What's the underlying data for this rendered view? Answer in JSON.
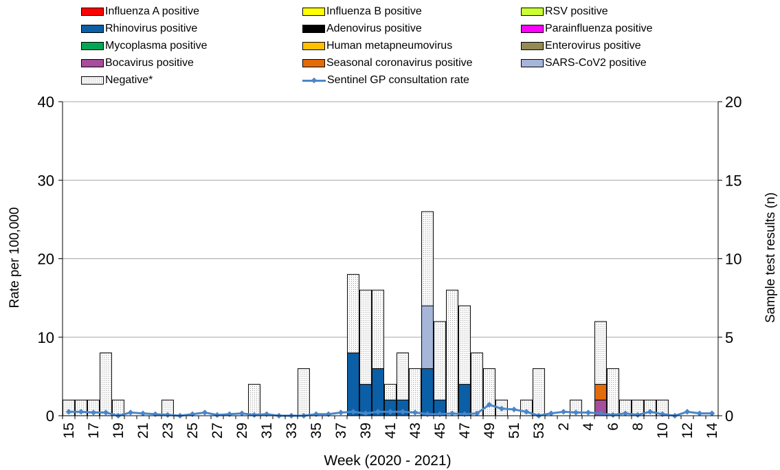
{
  "legend": [
    {
      "name": "Influenza A positive",
      "color": "#ff0000"
    },
    {
      "name": "Influenza B positive",
      "color": "#ffff00"
    },
    {
      "name": "RSV positive",
      "color": "#ccff33"
    },
    {
      "name": "Rhinovirus positive",
      "color": "#0b5fa6"
    },
    {
      "name": "Adenovirus positive",
      "color": "#000000"
    },
    {
      "name": "Parainfluenza positive",
      "color": "#ff00ff"
    },
    {
      "name": "Mycoplasma positive",
      "color": "#00a651"
    },
    {
      "name": "Human metapneumovirus",
      "color": "#ffc000"
    },
    {
      "name": "Enterovirus positive",
      "color": "#948a54"
    },
    {
      "name": "Bocavirus positive",
      "color": "#a64d9c"
    },
    {
      "name": "Seasonal coronavirus positive",
      "color": "#e36c09"
    },
    {
      "name": "SARS-CoV2 positive",
      "color": "#a6b6d9"
    },
    {
      "name": "Negative*",
      "color": "dotted"
    },
    {
      "name": "Sentinel GP consultation rate",
      "color": "#4a86c8"
    }
  ],
  "chart_data": {
    "type": "bar",
    "xlabel": "Week (2020 - 2021)",
    "ylabel": "Rate per 100,000",
    "y2label": "Sample test results (n)",
    "ylim": [
      0,
      40
    ],
    "y2lim": [
      0,
      20
    ],
    "yticks": [
      0,
      10,
      20,
      30,
      40
    ],
    "y2ticks": [
      0,
      5,
      10,
      15,
      20
    ],
    "grid": true,
    "legend_position": "top",
    "categories": [
      15,
      16,
      17,
      18,
      19,
      20,
      21,
      22,
      23,
      24,
      25,
      26,
      27,
      28,
      29,
      30,
      31,
      32,
      33,
      34,
      35,
      36,
      37,
      38,
      39,
      40,
      41,
      42,
      43,
      44,
      45,
      46,
      47,
      48,
      49,
      50,
      51,
      52,
      53,
      1,
      2,
      3,
      4,
      5,
      6,
      7,
      8,
      9,
      10,
      11,
      12,
      13,
      14
    ],
    "tick_labels": [
      "15",
      "17",
      "19",
      "21",
      "23",
      "25",
      "27",
      "29",
      "31",
      "33",
      "35",
      "37",
      "39",
      "41",
      "43",
      "45",
      "47",
      "49",
      "51",
      "53",
      "2",
      "4",
      "6",
      "8",
      "10",
      "12",
      "14"
    ],
    "series": [
      {
        "name": "Rhinovirus positive",
        "axis": "right",
        "values": [
          0,
          0,
          0,
          0,
          0,
          0,
          0,
          0,
          0,
          0,
          0,
          0,
          0,
          0,
          0,
          0,
          0,
          0,
          0,
          0,
          0,
          0,
          0,
          4,
          2,
          3,
          1,
          1,
          0,
          3,
          1,
          0,
          2,
          0,
          0,
          0,
          0,
          0,
          0,
          0,
          0,
          0,
          0,
          0,
          0,
          0,
          0,
          0,
          0,
          0,
          0,
          0,
          0
        ]
      },
      {
        "name": "SARS-CoV2 positive",
        "axis": "right",
        "values": [
          0,
          0,
          0,
          0,
          0,
          0,
          0,
          0,
          0,
          0,
          0,
          0,
          0,
          0,
          0,
          0,
          0,
          0,
          0,
          0,
          0,
          0,
          0,
          0,
          0,
          0,
          0,
          0,
          0,
          4,
          0,
          0,
          0,
          0,
          0,
          0,
          0,
          0,
          0,
          0,
          0,
          0,
          0,
          0,
          0,
          0,
          0,
          0,
          0,
          0,
          0,
          0,
          0
        ]
      },
      {
        "name": "Bocavirus positive",
        "axis": "right",
        "values": [
          0,
          0,
          0,
          0,
          0,
          0,
          0,
          0,
          0,
          0,
          0,
          0,
          0,
          0,
          0,
          0,
          0,
          0,
          0,
          0,
          0,
          0,
          0,
          0,
          0,
          0,
          0,
          0,
          0,
          0,
          0,
          0,
          0,
          0,
          0,
          0,
          0,
          0,
          0,
          0,
          0,
          0,
          0,
          1,
          0,
          0,
          0,
          0,
          0,
          0,
          0,
          0,
          0
        ]
      },
      {
        "name": "Seasonal coronavirus positive",
        "axis": "right",
        "values": [
          0,
          0,
          0,
          0,
          0,
          0,
          0,
          0,
          0,
          0,
          0,
          0,
          0,
          0,
          0,
          0,
          0,
          0,
          0,
          0,
          0,
          0,
          0,
          0,
          0,
          0,
          0,
          0,
          0,
          0,
          0,
          0,
          0,
          0,
          0,
          0,
          0,
          0,
          0,
          0,
          0,
          0,
          0,
          1,
          0,
          0,
          0,
          0,
          0,
          0,
          0,
          0,
          0
        ]
      },
      {
        "name": "Negative*",
        "axis": "right",
        "values": [
          1,
          1,
          1,
          4,
          1,
          0,
          0,
          0,
          1,
          0,
          0,
          0,
          0,
          0,
          0,
          2,
          0,
          0,
          0,
          3,
          0,
          0,
          0,
          5,
          6,
          5,
          1,
          3,
          3,
          6,
          5,
          8,
          5,
          4,
          3,
          1,
          0,
          1,
          3,
          0,
          0,
          1,
          0,
          4,
          3,
          1,
          1,
          1,
          1,
          0,
          0,
          0,
          0
        ]
      },
      {
        "name": "Sentinel GP consultation rate",
        "axis": "left",
        "type": "line",
        "values": [
          0.5,
          0.5,
          0.4,
          0.4,
          0,
          0.4,
          0.3,
          0.2,
          0.1,
          0,
          0.2,
          0.4,
          0.1,
          0.2,
          0.3,
          0.1,
          0.2,
          0,
          0,
          0,
          0.2,
          0.2,
          0.4,
          0.5,
          0.3,
          0.5,
          0.5,
          0.5,
          0.4,
          0.2,
          0.2,
          0.3,
          0.2,
          0.3,
          1.4,
          0.9,
          0.8,
          0.5,
          0,
          0.3,
          0.5,
          0.4,
          0.4,
          0.3,
          0.1,
          0.3,
          0.1,
          0.5,
          0.2,
          0,
          0.5,
          0.3,
          0.3
        ]
      }
    ]
  }
}
